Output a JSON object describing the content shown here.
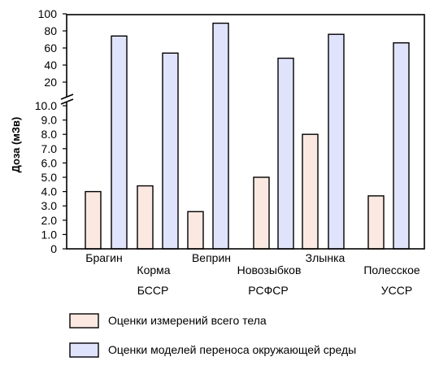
{
  "chart_data": {
    "type": "bar",
    "ylabel": "Доза (мЗв)",
    "y_axis": {
      "scale": "broken",
      "lower_range": [
        0,
        10
      ],
      "upper_range": [
        10,
        100
      ],
      "lower_ticks": [
        "0",
        "1.0",
        "2.0",
        "3.0",
        "4.0",
        "5.0",
        "6.0",
        "7.0",
        "8.0",
        "9.0",
        "10.0"
      ],
      "upper_ticks": [
        "20",
        "40",
        "60",
        "80",
        "100"
      ]
    },
    "categories": [
      "Брагин",
      "Корма",
      "Веприн",
      "Новозыбков",
      "Злынка",
      "Полесское"
    ],
    "groups": [
      {
        "label": "БССР",
        "categories": [
          "Брагин",
          "Корма",
          "Веприн"
        ]
      },
      {
        "label": "РСФСР",
        "categories": [
          "Новозыбков",
          "Злынка"
        ]
      },
      {
        "label": "УССР",
        "categories": [
          "Полесское"
        ]
      }
    ],
    "series": [
      {
        "name": "Оценки измерений всего тела",
        "color": "#fbe8e0",
        "values": [
          4.0,
          4.4,
          2.6,
          5.0,
          8.0,
          3.7
        ]
      },
      {
        "name": "Оценки моделей переноса окружающей среды",
        "color": "#dfe4fc",
        "values": [
          74,
          54,
          89,
          48,
          76,
          66
        ]
      }
    ],
    "grid": false,
    "legend_position": "bottom"
  }
}
